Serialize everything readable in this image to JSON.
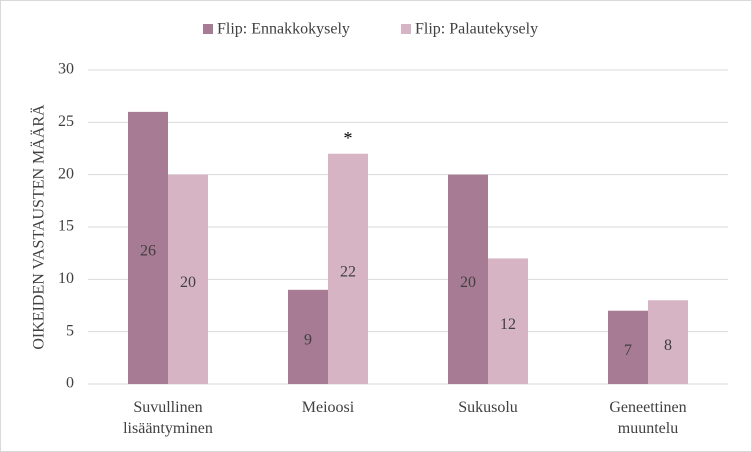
{
  "chart_data": {
    "type": "bar",
    "y_label": "OIKEIDEN VASTAUSTEN MÄÄRÄ",
    "categories": [
      "Suvullinen lisääntyminen",
      "Meioosi",
      "Sukusolu",
      "Geneettinen muuntelu"
    ],
    "series": [
      {
        "name": "Flip: Ennakkokysely",
        "color": "#a87b94",
        "values": [
          26,
          9,
          20,
          7
        ]
      },
      {
        "name": "Flip: Palautekysely",
        "color": "#d6b4c4",
        "values": [
          20,
          22,
          12,
          8
        ]
      }
    ],
    "annotations": [
      {
        "text": "*",
        "category": 1,
        "series": 1
      }
    ],
    "ylim": [
      0,
      30
    ],
    "yticks": [
      0,
      5,
      10,
      15,
      20,
      25,
      30
    ],
    "grid": true,
    "legend": "top"
  }
}
